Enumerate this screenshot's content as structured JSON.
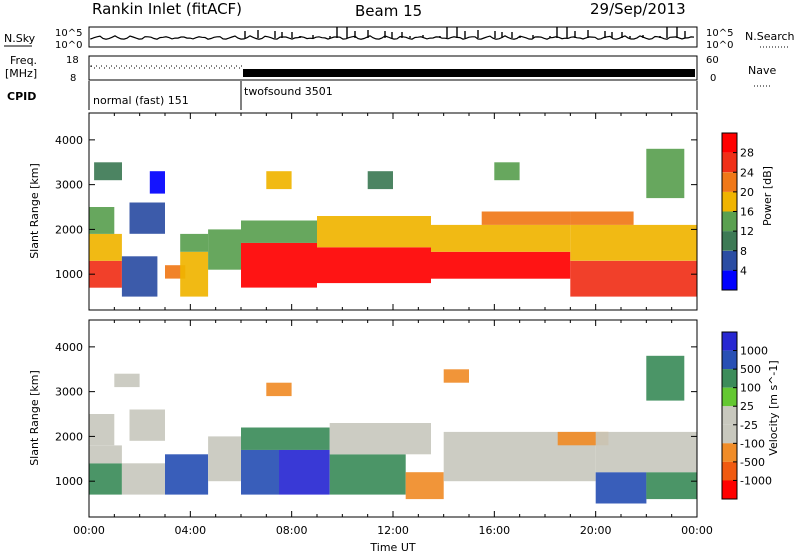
{
  "header": {
    "station": "Rankin Inlet (fitACF)",
    "beam": "Beam 15",
    "date": "29/Sep/2013"
  },
  "noise_panel": {
    "left_label": "N.Sky",
    "right_label": "N.Search",
    "left_ticks": [
      "10^5",
      "10^0"
    ],
    "right_ticks": [
      "10^5",
      "10^0"
    ]
  },
  "freq_panel": {
    "left_label_top": "Freq.",
    "left_label_bottom": "[MHz]",
    "left_ticks": [
      "18",
      "8"
    ],
    "right_label": "Nave",
    "right_ticks": [
      "60",
      "0"
    ]
  },
  "cpid_panel": {
    "label": "CPID",
    "modes": [
      {
        "name": "normal (fast) 151",
        "start_hour": 0,
        "end_hour": 6
      },
      {
        "name": "twofsound 3501",
        "start_hour": 6,
        "end_hour": 24
      }
    ]
  },
  "colors": {
    "power": [
      "#0000ff",
      "#2b4da3",
      "#3d7a55",
      "#5aa050",
      "#f0b400",
      "#f07818",
      "#f03018",
      "#ff0000"
    ],
    "velocity": [
      "#ff0000",
      "#f05a10",
      "#f08c28",
      "#c8c8be",
      "#c8c8be",
      "#64c832",
      "#3c8c5a",
      "#2850b4",
      "#2828d2"
    ]
  },
  "chart_data": [
    {
      "type": "heatmap",
      "panel": "power",
      "ylabel": "Slant Range [km]",
      "yticks": [
        "1000",
        "2000",
        "3000",
        "4000"
      ],
      "ylim": [
        200,
        4600
      ],
      "xlim": [
        0,
        24
      ],
      "colorbar": {
        "label": "Power [dB]",
        "ticks": [
          "4",
          "8",
          "12",
          "16",
          "20",
          "24",
          "28"
        ],
        "range": [
          0,
          32
        ]
      },
      "regions": [
        {
          "t0": 0.0,
          "t1": 1.3,
          "r0": 700,
          "r1": 1300,
          "v": 27
        },
        {
          "t0": 0.0,
          "t1": 1.3,
          "r0": 1300,
          "r1": 1900,
          "v": 18
        },
        {
          "t0": 0.0,
          "t1": 1.0,
          "r0": 1900,
          "r1": 2500,
          "v": 12
        },
        {
          "t0": 0.2,
          "t1": 1.3,
          "r0": 3100,
          "r1": 3500,
          "v": 8
        },
        {
          "t0": 1.3,
          "t1": 2.7,
          "r0": 500,
          "r1": 1400,
          "v": 7
        },
        {
          "t0": 1.6,
          "t1": 3.0,
          "r0": 1900,
          "r1": 2600,
          "v": 6
        },
        {
          "t0": 2.4,
          "t1": 3.0,
          "r0": 2800,
          "r1": 3300,
          "v": 3
        },
        {
          "t0": 3.0,
          "t1": 3.8,
          "r0": 900,
          "r1": 1200,
          "v": 22
        },
        {
          "t0": 3.6,
          "t1": 4.7,
          "r0": 500,
          "r1": 1500,
          "v": 18
        },
        {
          "t0": 3.6,
          "t1": 4.7,
          "r0": 1500,
          "r1": 1900,
          "v": 12
        },
        {
          "t0": 4.7,
          "t1": 6.0,
          "r0": 1100,
          "r1": 2000,
          "v": 14
        },
        {
          "t0": 6.0,
          "t1": 9.0,
          "r0": 700,
          "r1": 1700,
          "v": 29
        },
        {
          "t0": 6.0,
          "t1": 9.0,
          "r0": 1700,
          "r1": 2200,
          "v": 14
        },
        {
          "t0": 9.0,
          "t1": 13.5,
          "r0": 800,
          "r1": 1600,
          "v": 29
        },
        {
          "t0": 9.0,
          "t1": 13.5,
          "r0": 1600,
          "r1": 2300,
          "v": 16
        },
        {
          "t0": 13.5,
          "t1": 19.0,
          "r0": 900,
          "r1": 1500,
          "v": 28
        },
        {
          "t0": 13.5,
          "t1": 19.0,
          "r0": 1500,
          "r1": 2100,
          "v": 18
        },
        {
          "t0": 15.5,
          "t1": 19.0,
          "r0": 2100,
          "r1": 2400,
          "v": 20
        },
        {
          "t0": 19.0,
          "t1": 24.0,
          "r0": 500,
          "r1": 1300,
          "v": 27
        },
        {
          "t0": 19.0,
          "t1": 24.0,
          "r0": 1300,
          "r1": 2100,
          "v": 18
        },
        {
          "t0": 19.0,
          "t1": 21.5,
          "r0": 2100,
          "r1": 2400,
          "v": 22
        },
        {
          "t0": 11.0,
          "t1": 12.0,
          "r0": 2900,
          "r1": 3300,
          "v": 10
        },
        {
          "t0": 16.0,
          "t1": 17.0,
          "r0": 3100,
          "r1": 3500,
          "v": 12
        },
        {
          "t0": 22.0,
          "t1": 23.5,
          "r0": 2700,
          "r1": 3800,
          "v": 14
        },
        {
          "t0": 7.0,
          "t1": 8.0,
          "r0": 2900,
          "r1": 3300,
          "v": 16
        }
      ]
    },
    {
      "type": "heatmap",
      "panel": "velocity",
      "xlabel": "Time UT",
      "ylabel": "Slant Range [km]",
      "yticks": [
        "1000",
        "2000",
        "3000",
        "4000"
      ],
      "ylim": [
        200,
        4600
      ],
      "xlim": [
        0,
        24
      ],
      "xticks": [
        "00:00",
        "04:00",
        "08:00",
        "12:00",
        "16:00",
        "20:00",
        "00:00"
      ],
      "colorbar": {
        "label": "Velocity [m s^-1]",
        "ticks": [
          "1000",
          "500",
          "100",
          "25",
          "-25",
          "-100",
          "-500",
          "-1000"
        ]
      },
      "regions": [
        {
          "t0": 0.0,
          "t1": 1.3,
          "r0": 700,
          "r1": 1400,
          "v": 100
        },
        {
          "t0": 0.0,
          "t1": 1.3,
          "r0": 1400,
          "r1": 1800,
          "v": 0
        },
        {
          "t0": 0.0,
          "t1": 1.0,
          "r0": 1800,
          "r1": 2500,
          "v": 0
        },
        {
          "t0": 1.3,
          "t1": 3.0,
          "r0": 700,
          "r1": 1400,
          "v": 0
        },
        {
          "t0": 1.6,
          "t1": 3.0,
          "r0": 1900,
          "r1": 2600,
          "v": 0
        },
        {
          "t0": 3.0,
          "t1": 4.7,
          "r0": 700,
          "r1": 1600,
          "v": 300
        },
        {
          "t0": 4.7,
          "t1": 6.0,
          "r0": 1000,
          "r1": 2000,
          "v": 0
        },
        {
          "t0": 6.0,
          "t1": 7.5,
          "r0": 700,
          "r1": 1700,
          "v": 300
        },
        {
          "t0": 7.5,
          "t1": 9.5,
          "r0": 700,
          "r1": 1700,
          "v": 700
        },
        {
          "t0": 6.0,
          "t1": 9.5,
          "r0": 1700,
          "r1": 2200,
          "v": 100
        },
        {
          "t0": 9.5,
          "t1": 12.5,
          "r0": 700,
          "r1": 1600,
          "v": 100
        },
        {
          "t0": 9.5,
          "t1": 13.5,
          "r0": 1600,
          "r1": 2300,
          "v": 0
        },
        {
          "t0": 12.5,
          "t1": 14.0,
          "r0": 600,
          "r1": 1200,
          "v": -300
        },
        {
          "t0": 14.0,
          "t1": 20.0,
          "r0": 1000,
          "r1": 2100,
          "v": 0
        },
        {
          "t0": 18.5,
          "t1": 20.5,
          "r0": 1800,
          "r1": 2100,
          "v": -200
        },
        {
          "t0": 20.0,
          "t1": 22.0,
          "r0": 500,
          "r1": 1200,
          "v": 300
        },
        {
          "t0": 22.0,
          "t1": 24.0,
          "r0": 600,
          "r1": 1200,
          "v": 100
        },
        {
          "t0": 20.0,
          "t1": 24.0,
          "r0": 1200,
          "r1": 2100,
          "v": 0
        },
        {
          "t0": 1.0,
          "t1": 2.0,
          "r0": 3100,
          "r1": 3400,
          "v": 0
        },
        {
          "t0": 7.0,
          "t1": 8.0,
          "r0": 2900,
          "r1": 3200,
          "v": -200
        },
        {
          "t0": 14.0,
          "t1": 15.0,
          "r0": 3200,
          "r1": 3500,
          "v": -150
        },
        {
          "t0": 22.0,
          "t1": 23.5,
          "r0": 2800,
          "r1": 3800,
          "v": 100
        }
      ]
    }
  ]
}
